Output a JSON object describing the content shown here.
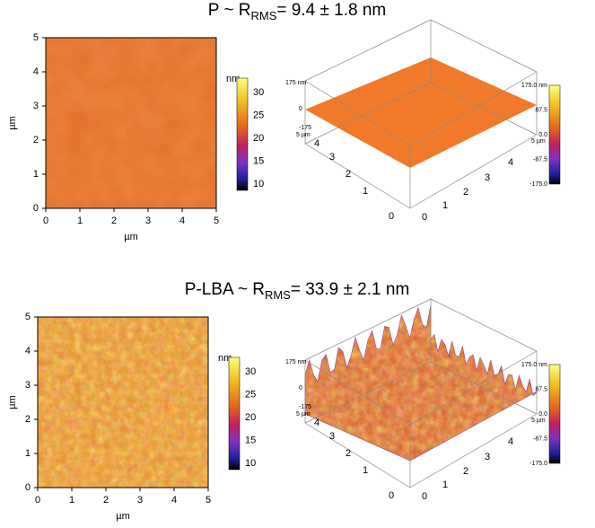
{
  "panels": [
    {
      "title": {
        "main": "P ~ R",
        "sub": "RMS",
        "rest": "= 9.4 ± 1.8 nm"
      },
      "image2d": {
        "xticks": [
          "0",
          "1",
          "2",
          "3",
          "4",
          "5"
        ],
        "yticks": [
          "0",
          "1",
          "2",
          "3",
          "4",
          "5"
        ],
        "xlabel": "µm",
        "ylabel": "µm"
      },
      "colorbar2d": {
        "unit": "nm",
        "ticks": [
          "30",
          "25",
          "20",
          "15",
          "10"
        ]
      },
      "surface3d": {
        "zticks": [
          "175 nm",
          "0",
          "-175"
        ],
        "left_ticks": [
          "5 µm",
          "4",
          "3",
          "2",
          "1",
          "0"
        ],
        "right_ticks": [
          "5 µm",
          "4",
          "3",
          "2",
          "1",
          "0"
        ]
      },
      "colorbar3d": {
        "ticks": [
          "175.0 nm",
          "87.5",
          "0.0",
          "-87.5",
          "-175.0"
        ]
      }
    },
    {
      "title": {
        "main": "P-LBA ~ R",
        "sub": "RMS",
        "rest": "= 33.9 ± 2.1 nm"
      },
      "image2d": {
        "xticks": [
          "0",
          "1",
          "2",
          "3",
          "4",
          "5"
        ],
        "yticks": [
          "0",
          "1",
          "2",
          "3",
          "4",
          "5"
        ],
        "xlabel": "µm",
        "ylabel": "µm"
      },
      "colorbar2d": {
        "unit": "nm",
        "ticks": [
          "30",
          "25",
          "20",
          "15",
          "10"
        ]
      },
      "surface3d": {
        "zticks": [
          "175 nm",
          "0",
          "-175"
        ],
        "left_ticks": [
          "5 µm",
          "4",
          "3",
          "2",
          "1",
          "0"
        ],
        "right_ticks": [
          "5 µm",
          "4",
          "3",
          "2",
          "1",
          "0"
        ]
      },
      "colorbar3d": {
        "ticks": [
          "175.0 nm",
          "87.5",
          "0.0",
          "-87.5",
          "-175.0"
        ]
      }
    }
  ]
}
